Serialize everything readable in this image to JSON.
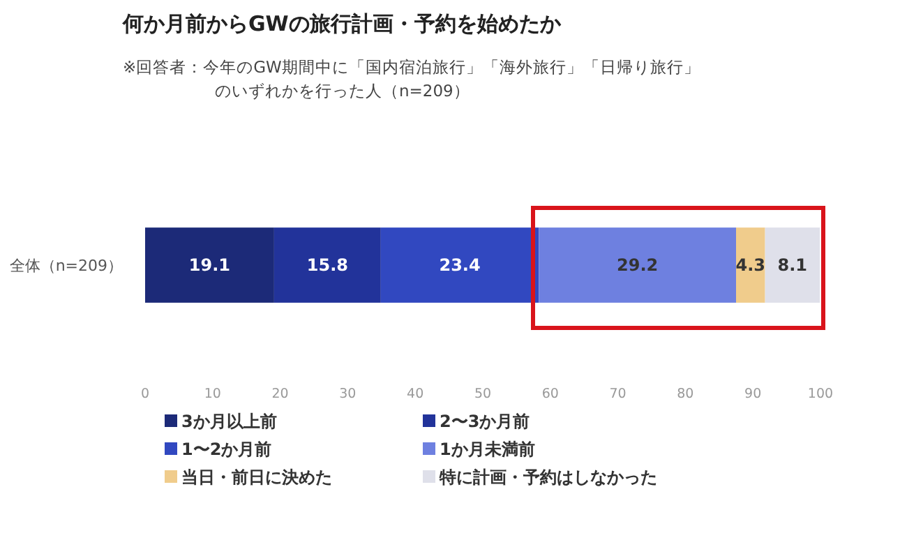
{
  "chart_data": {
    "type": "bar",
    "orientation": "horizontal",
    "stacked": true,
    "title": "何か月前からGWの旅行計画・予約を始めたか",
    "subtitle": [
      "※回答者：今年のGW期間中に「国内宿泊旅行」「海外旅行」「日帰り旅行」",
      "のいずれかを行った人（n=209）"
    ],
    "categories": [
      "全体（n=209）"
    ],
    "series": [
      {
        "name": "3か月以上前",
        "color": "#1c2a78",
        "values": [
          19.1
        ]
      },
      {
        "name": "2〜3か月前",
        "color": "#22339a",
        "values": [
          15.8
        ]
      },
      {
        "name": "1〜2か月前",
        "color": "#3148c0",
        "values": [
          23.4
        ]
      },
      {
        "name": "1か月未満前",
        "color": "#6e80e0",
        "values": [
          29.2
        ]
      },
      {
        "name": "当日・前日に決めた",
        "color": "#f0cc8c",
        "values": [
          4.3
        ]
      },
      {
        "name": "特に計画・予約はしなかった",
        "color": "#dfe0ea",
        "values": [
          8.1
        ]
      }
    ],
    "xlim": [
      0,
      100
    ],
    "xticks": [
      0,
      10,
      20,
      30,
      40,
      50,
      60,
      70,
      80,
      90,
      100
    ],
    "data_labels": true,
    "legend": "bottom",
    "grid": false
  }
}
